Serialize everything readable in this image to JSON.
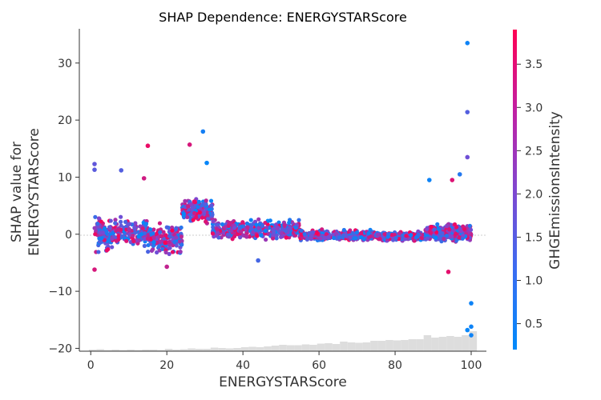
{
  "chart_data": {
    "type": "scatter",
    "title": "SHAP Dependence: ENERGYSTARScore",
    "xlabel": "ENERGYSTARScore",
    "ylabel": [
      "SHAP value for",
      "ENERGYSTARScore"
    ],
    "xlim": [
      -3,
      104
    ],
    "ylim": [
      -20.5,
      36
    ],
    "xticks": [
      0,
      20,
      40,
      60,
      80,
      100
    ],
    "yticks": [
      -20,
      -10,
      0,
      10,
      20,
      30
    ],
    "xtick_labels": [
      "0",
      "20",
      "40",
      "60",
      "80",
      "100"
    ],
    "ytick_labels": [
      "−20",
      "−10",
      "0",
      "10",
      "20",
      "30"
    ],
    "colorbar": {
      "label": "GHGEmissionsIntensity",
      "range": [
        0.2,
        3.9
      ],
      "ticks": [
        0.5,
        1.0,
        1.5,
        2.0,
        2.5,
        3.0,
        3.5
      ],
      "tick_labels": [
        "0.5",
        "1.0",
        "1.5",
        "2.0",
        "2.5",
        "3.0",
        "3.5"
      ],
      "low_color": "#008afb",
      "high_color": "#ff0052"
    },
    "bands": [
      {
        "x": [
          1,
          5
        ],
        "center": 0,
        "spread": 4.0,
        "count": 90
      },
      {
        "x": [
          5,
          15
        ],
        "center": 0.3,
        "spread": 3.0,
        "count": 160
      },
      {
        "x": [
          15,
          24
        ],
        "center": -0.8,
        "spread": 3.2,
        "count": 170
      },
      {
        "x": [
          24,
          32
        ],
        "center": 4.0,
        "spread": 2.4,
        "count": 200
      },
      {
        "x": [
          32,
          55
        ],
        "center": 0.8,
        "spread": 2.0,
        "count": 380
      },
      {
        "x": [
          55,
          75
        ],
        "center": -0.2,
        "spread": 1.1,
        "count": 360
      },
      {
        "x": [
          75,
          88
        ],
        "center": -0.4,
        "spread": 0.9,
        "count": 320
      },
      {
        "x": [
          88,
          100
        ],
        "center": 0.3,
        "spread": 1.8,
        "count": 420
      }
    ],
    "outliers": [
      {
        "x": 99,
        "y": 33.5,
        "c": 0.4
      },
      {
        "x": 99,
        "y": 21.4,
        "c": 1.4
      },
      {
        "x": 99,
        "y": 13.5,
        "c": 1.8
      },
      {
        "x": 29.5,
        "y": 18.0,
        "c": 0.5
      },
      {
        "x": 30.5,
        "y": 12.5,
        "c": 0.3
      },
      {
        "x": 26,
        "y": 15.7,
        "c": 3.3
      },
      {
        "x": 15,
        "y": 15.5,
        "c": 3.6
      },
      {
        "x": 1,
        "y": 12.3,
        "c": 1.6
      },
      {
        "x": 1,
        "y": 11.3,
        "c": 1.5
      },
      {
        "x": 8,
        "y": 11.2,
        "c": 1.4
      },
      {
        "x": 14,
        "y": 9.8,
        "c": 3.2
      },
      {
        "x": 97,
        "y": 10.5,
        "c": 0.7
      },
      {
        "x": 95,
        "y": 9.5,
        "c": 3.4
      },
      {
        "x": 89,
        "y": 9.5,
        "c": 0.4
      },
      {
        "x": 100,
        "y": -12.1,
        "c": 0.4
      },
      {
        "x": 100,
        "y": -16.2,
        "c": 0.4
      },
      {
        "x": 99,
        "y": -16.8,
        "c": 0.3
      },
      {
        "x": 100,
        "y": -17.7,
        "c": 0.4
      },
      {
        "x": 94,
        "y": -6.6,
        "c": 3.5
      },
      {
        "x": 1,
        "y": -6.2,
        "c": 3.3
      },
      {
        "x": 20,
        "y": -5.7,
        "c": 3.0
      },
      {
        "x": 44,
        "y": -4.6,
        "c": 1.2
      }
    ],
    "histogram": {
      "bin_width": 2,
      "heights": [
        0.2,
        0.25,
        0.15,
        0.2,
        0.15,
        0.2,
        0.15,
        0.2,
        0.2,
        0.15,
        0.3,
        0.2,
        0.25,
        0.35,
        0.3,
        0.3,
        0.45,
        0.4,
        0.35,
        0.4,
        0.5,
        0.55,
        0.5,
        0.6,
        0.7,
        0.8,
        0.75,
        0.75,
        0.85,
        0.8,
        0.95,
        1.0,
        0.9,
        1.2,
        1.1,
        1.05,
        1.1,
        1.3,
        1.3,
        1.4,
        1.35,
        1.4,
        1.5,
        1.5,
        2.0,
        1.7,
        1.8,
        1.9,
        1.8,
        2.0,
        2.5
      ]
    }
  }
}
